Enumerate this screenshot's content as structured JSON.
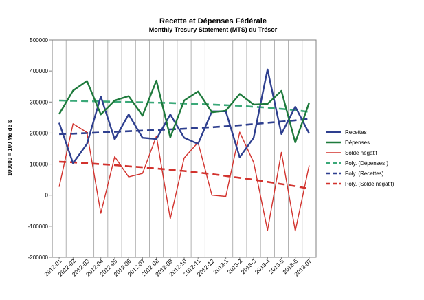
{
  "chart_data": {
    "type": "line",
    "title": "Recette et Dépenses Fédérale",
    "subtitle": "Monthly Tresury Statement (MTS) du Trésor",
    "xlabel": "",
    "ylabel": "100000 = 100 Md de $",
    "ylim": [
      -200000,
      500000
    ],
    "yticks": [
      500000,
      400000,
      300000,
      200000,
      100000,
      0,
      -100000,
      -200000
    ],
    "categories": [
      "2012-01",
      "2012-02",
      "2012-03",
      "2012-04",
      "2012-05",
      "2012-06",
      "2012-07",
      "2012-08",
      "2012-09",
      "2012-10",
      "2012-11",
      "2012-12",
      "2013-1",
      "2013-2",
      "2013-3",
      "2013-4",
      "2013-5",
      "2013-6",
      "2013-07"
    ],
    "grid": "vertical",
    "legend_position": "right",
    "series": [
      {
        "name": "Recettes",
        "color": "#2e3f8f",
        "style": "solid",
        "values": [
          233000,
          103000,
          165000,
          318000,
          180000,
          260000,
          185000,
          181000,
          260000,
          185000,
          165000,
          270000,
          270000,
          122000,
          185000,
          405000,
          197000,
          285000,
          199000
        ]
      },
      {
        "name": "Dépenses",
        "color": "#1e7a3c",
        "style": "solid",
        "values": [
          261000,
          337000,
          368000,
          260000,
          305000,
          319000,
          256000,
          369000,
          186000,
          305000,
          334000,
          267000,
          272000,
          326000,
          292000,
          294000,
          336000,
          170000,
          298000
        ]
      },
      {
        "name": "Solde négatif",
        "color": "#d2322d",
        "style": "solid",
        "values": [
          27000,
          230000,
          202000,
          -58000,
          124000,
          59000,
          70000,
          190000,
          -76000,
          120000,
          170000,
          0,
          -4000,
          203000,
          106000,
          -113000,
          138000,
          -115000,
          96000
        ]
      },
      {
        "name": "Poly. (Dépenses )",
        "color": "#3aa878",
        "style": "dashed",
        "values": [
          305000,
          304000,
          303000,
          302000,
          301000,
          300000,
          299000,
          298000,
          297000,
          295000,
          294000,
          292000,
          290000,
          288000,
          285000,
          282000,
          278000,
          274000,
          268000
        ]
      },
      {
        "name": "Poly. (Recettes)",
        "color": "#2e3f8f",
        "style": "dashed",
        "values": [
          197000,
          198000,
          200000,
          202000,
          204000,
          206000,
          208000,
          210000,
          212000,
          214000,
          217000,
          219000,
          222000,
          225000,
          229000,
          233000,
          237000,
          241000,
          246000
        ]
      },
      {
        "name": "Poly. (Solde négatif)",
        "color": "#d2322d",
        "style": "dashed",
        "values": [
          108000,
          106000,
          103000,
          100000,
          97000,
          93000,
          90000,
          86000,
          82000,
          78000,
          73000,
          68000,
          62000,
          56000,
          50000,
          43000,
          36000,
          29000,
          21000
        ]
      }
    ]
  }
}
